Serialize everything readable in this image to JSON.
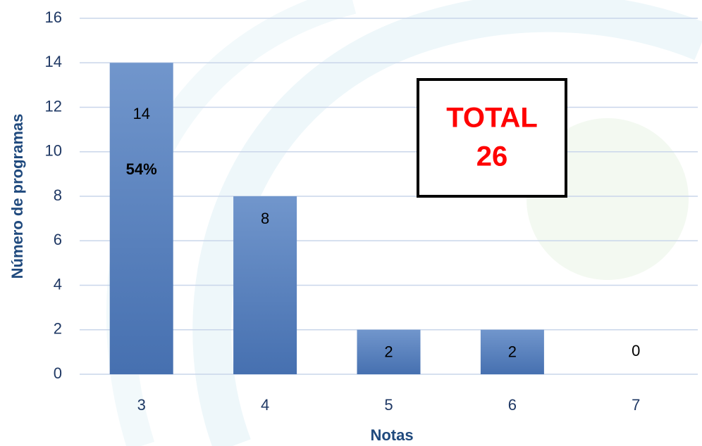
{
  "chart_data": {
    "type": "bar",
    "x_label": "Notas",
    "y_label": "Número de programas",
    "categories": [
      "3",
      "4",
      "5",
      "6",
      "7"
    ],
    "values": [
      14,
      8,
      2,
      2,
      0
    ],
    "color": "#5a82bf",
    "ylim": [
      0,
      16
    ],
    "yticks": [
      0,
      2,
      4,
      6,
      8,
      10,
      12,
      14,
      16
    ],
    "grid": true,
    "annotation": "54%",
    "total_label": "TOTAL",
    "total": 26
  }
}
